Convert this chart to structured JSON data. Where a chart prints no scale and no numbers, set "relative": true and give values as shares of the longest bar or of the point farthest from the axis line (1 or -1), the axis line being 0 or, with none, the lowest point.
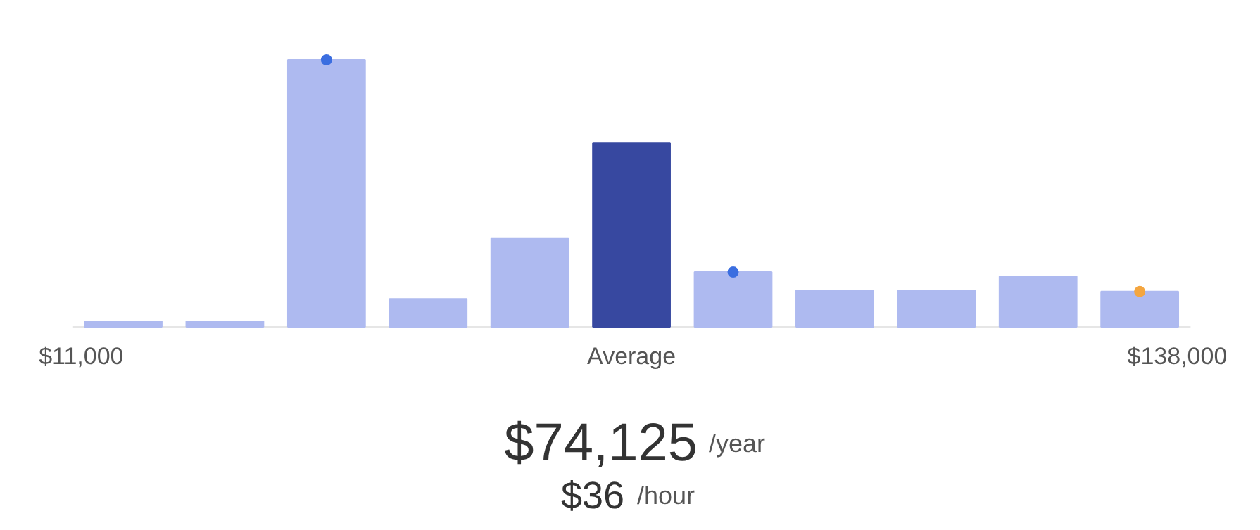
{
  "chart_data": {
    "type": "bar",
    "relative": true,
    "categories": [
      "$11,000",
      null,
      null,
      null,
      null,
      "Average",
      null,
      null,
      null,
      null,
      "$138,000"
    ],
    "series": [
      {
        "colors": [
          "#aebaf0",
          "#aebaf0",
          "#aebaf0",
          "#aebaf0",
          "#aebaf0",
          "#3748a0",
          "#aebaf0",
          "#aebaf0",
          "#aebaf0",
          "#aebaf0",
          "#aebaf0"
        ],
        "values": [
          0.021,
          0.021,
          1,
          0.105,
          0.332,
          0.689,
          0.205,
          0.137,
          0.137,
          0.189,
          0.132
        ]
      },
      {
        "type": "scatter",
        "color": "#3b6ee0",
        "values": [
          null,
          null,
          1,
          null,
          null,
          null,
          0.205,
          null,
          null,
          null,
          null
        ]
      },
      {
        "type": "scatter",
        "color": "#f4a640",
        "values": [
          null,
          null,
          null,
          null,
          null,
          null,
          null,
          null,
          null,
          null,
          0.132
        ]
      }
    ],
    "annotations": [
      "$74,125",
      "/year",
      "$36",
      "/hour"
    ]
  }
}
